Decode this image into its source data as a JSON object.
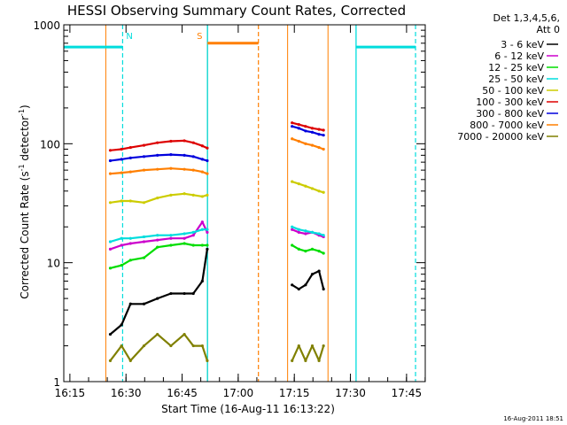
{
  "chart_data": {
    "type": "line",
    "title": "HESSI Observing Summary Count Rates, Corrected",
    "xlabel": "Start Time (16-Aug-11 16:13:22)",
    "ylabel_parts": [
      "Corrected Count Rate (s",
      "-1",
      " detector",
      "-1",
      ")"
    ],
    "yscale": "log",
    "ylim": [
      1,
      1000
    ],
    "y_ticks": [
      {
        "v": 1,
        "label": "1"
      },
      {
        "v": 10,
        "label": "10"
      },
      {
        "v": 100,
        "label": "100"
      },
      {
        "v": 1000,
        "label": "1000"
      }
    ],
    "xlim": [
      16.2228,
      17.8333
    ],
    "x_ticks": [
      {
        "v": 16.25,
        "label": "16:15"
      },
      {
        "v": 16.5,
        "label": "16:30"
      },
      {
        "v": 16.75,
        "label": "16:45"
      },
      {
        "v": 17.0,
        "label": "17:00"
      },
      {
        "v": 17.25,
        "label": "17:15"
      },
      {
        "v": 17.5,
        "label": "17:30"
      },
      {
        "v": 17.75,
        "label": "17:45"
      }
    ],
    "legend_header": [
      "Det 1,3,4,5,6,",
      "Att 0"
    ],
    "legend_position": "right",
    "observation_windows": [
      {
        "start": 16.41,
        "end": 16.863
      },
      {
        "start": 17.22,
        "end": 17.4
      }
    ],
    "night_lines": [
      {
        "x": 16.863,
        "color": "#00dddd"
      },
      {
        "x": 17.525,
        "color": "#00dddd"
      }
    ],
    "day_lines": [
      {
        "x": 16.485,
        "color": "#00dddd"
      },
      {
        "x": 17.09,
        "color": "#ff7f00"
      },
      {
        "x": 17.79,
        "color": "#00dddd"
      }
    ],
    "markers": [
      {
        "text": "N",
        "x": 16.485,
        "x_start": 16.2228,
        "x_end": 16.485,
        "y": 650,
        "color": "#00dddd"
      },
      {
        "text": "S",
        "x": 16.863,
        "x_start": 16.863,
        "x_end": 17.09,
        "y": 700,
        "color": "#ff7f00"
      },
      {
        "text": "",
        "x": 17.525,
        "x_start": 17.525,
        "x_end": 17.79,
        "y": 650,
        "color": "#00dddd"
      }
    ],
    "series": [
      {
        "name": "3 - 6 keV",
        "color": "#000000",
        "segments": [
          {
            "x": [
              16.43,
              16.48,
              16.52,
              16.58,
              16.64,
              16.7,
              16.76,
              16.8,
              16.84,
              16.862
            ],
            "y": [
              2.5,
              3.0,
              4.5,
              4.5,
              5.0,
              5.5,
              5.5,
              5.5,
              7.0,
              13.0
            ]
          },
          {
            "x": [
              17.24,
              17.27,
              17.3,
              17.33,
              17.36,
              17.38
            ],
            "y": [
              6.5,
              6.0,
              6.5,
              8.0,
              8.5,
              6.0
            ]
          }
        ]
      },
      {
        "name": "6 - 12 keV",
        "color": "#cc00cc",
        "segments": [
          {
            "x": [
              16.43,
              16.48,
              16.52,
              16.58,
              16.64,
              16.7,
              16.76,
              16.8,
              16.84,
              16.862
            ],
            "y": [
              13.0,
              14.0,
              14.5,
              15.0,
              15.5,
              16.0,
              16.0,
              17.0,
              22.0,
              18.0
            ]
          },
          {
            "x": [
              17.24,
              17.27,
              17.3,
              17.33,
              17.36,
              17.38
            ],
            "y": [
              19.0,
              18.0,
              17.5,
              18.0,
              17.0,
              16.5
            ]
          }
        ]
      },
      {
        "name": "12 - 25 keV",
        "color": "#00dd00",
        "segments": [
          {
            "x": [
              16.43,
              16.48,
              16.52,
              16.58,
              16.64,
              16.7,
              16.76,
              16.8,
              16.84,
              16.862
            ],
            "y": [
              9.0,
              9.5,
              10.5,
              11.0,
              13.5,
              14.0,
              14.5,
              14.0,
              14.0,
              14.0
            ]
          },
          {
            "x": [
              17.24,
              17.27,
              17.3,
              17.33,
              17.36,
              17.38
            ],
            "y": [
              14.0,
              13.0,
              12.5,
              13.0,
              12.5,
              12.0
            ]
          }
        ]
      },
      {
        "name": "25 - 50 keV",
        "color": "#00dddd",
        "segments": [
          {
            "x": [
              16.43,
              16.48,
              16.52,
              16.58,
              16.64,
              16.7,
              16.76,
              16.8,
              16.84,
              16.862
            ],
            "y": [
              15.0,
              16.0,
              16.0,
              16.5,
              17.0,
              17.0,
              17.5,
              18.0,
              19.0,
              19.0
            ]
          },
          {
            "x": [
              17.24,
              17.27,
              17.3,
              17.33,
              17.36,
              17.38
            ],
            "y": [
              20.0,
              19.0,
              18.5,
              18.0,
              17.5,
              17.0
            ]
          }
        ]
      },
      {
        "name": "50 - 100 keV",
        "color": "#cccc00",
        "segments": [
          {
            "x": [
              16.43,
              16.48,
              16.52,
              16.58,
              16.64,
              16.7,
              16.76,
              16.8,
              16.84,
              16.862
            ],
            "y": [
              32.0,
              33.0,
              33.0,
              32.0,
              35.0,
              37.0,
              38.0,
              37.0,
              36.0,
              37.0
            ]
          },
          {
            "x": [
              17.24,
              17.27,
              17.3,
              17.33,
              17.36,
              17.38
            ],
            "y": [
              48.0,
              46.0,
              44.0,
              42.0,
              40.0,
              39.0
            ]
          }
        ]
      },
      {
        "name": "100 - 300 keV",
        "color": "#dd0000",
        "segments": [
          {
            "x": [
              16.43,
              16.48,
              16.52,
              16.58,
              16.64,
              16.7,
              16.76,
              16.8,
              16.84,
              16.862
            ],
            "y": [
              88.0,
              90.0,
              93.0,
              97.0,
              102.0,
              105.0,
              106.0,
              102.0,
              96.0,
              92.0
            ]
          },
          {
            "x": [
              17.24,
              17.27,
              17.3,
              17.33,
              17.36,
              17.38
            ],
            "y": [
              150.0,
              145.0,
              140.0,
              135.0,
              132.0,
              130.0
            ]
          }
        ]
      },
      {
        "name": "300 - 800 keV",
        "color": "#0000dd",
        "segments": [
          {
            "x": [
              16.43,
              16.48,
              16.52,
              16.58,
              16.64,
              16.7,
              16.76,
              16.8,
              16.84,
              16.862
            ],
            "y": [
              72.0,
              74.0,
              76.0,
              78.0,
              80.0,
              81.0,
              80.0,
              78.0,
              74.0,
              72.0
            ]
          },
          {
            "x": [
              17.24,
              17.27,
              17.3,
              17.33,
              17.36,
              17.38
            ],
            "y": [
              140.0,
              135.0,
              128.0,
              125.0,
              120.0,
              118.0
            ]
          }
        ]
      },
      {
        "name": "800 - 7000 keV",
        "color": "#ff7f00",
        "segments": [
          {
            "x": [
              16.43,
              16.48,
              16.52,
              16.58,
              16.64,
              16.7,
              16.76,
              16.8,
              16.84,
              16.862
            ],
            "y": [
              56.0,
              57.0,
              58.0,
              60.0,
              61.0,
              62.0,
              61.0,
              60.0,
              58.0,
              56.0
            ]
          },
          {
            "x": [
              17.24,
              17.27,
              17.3,
              17.33,
              17.36,
              17.38
            ],
            "y": [
              110.0,
              105.0,
              100.0,
              97.0,
              93.0,
              90.0
            ]
          }
        ]
      },
      {
        "name": "7000 - 20000 keV",
        "color": "#808000",
        "segments": [
          {
            "x": [
              16.43,
              16.48,
              16.52,
              16.58,
              16.64,
              16.7,
              16.76,
              16.8,
              16.84,
              16.862
            ],
            "y": [
              1.5,
              2.0,
              1.5,
              2.0,
              2.5,
              2.0,
              2.5,
              2.0,
              2.0,
              1.5
            ]
          },
          {
            "x": [
              17.24,
              17.27,
              17.3,
              17.33,
              17.36,
              17.38
            ],
            "y": [
              1.5,
              2.0,
              1.5,
              2.0,
              1.5,
              2.0
            ]
          }
        ]
      }
    ]
  },
  "footer": {
    "timestamp": "16-Aug-2011 18:51"
  }
}
